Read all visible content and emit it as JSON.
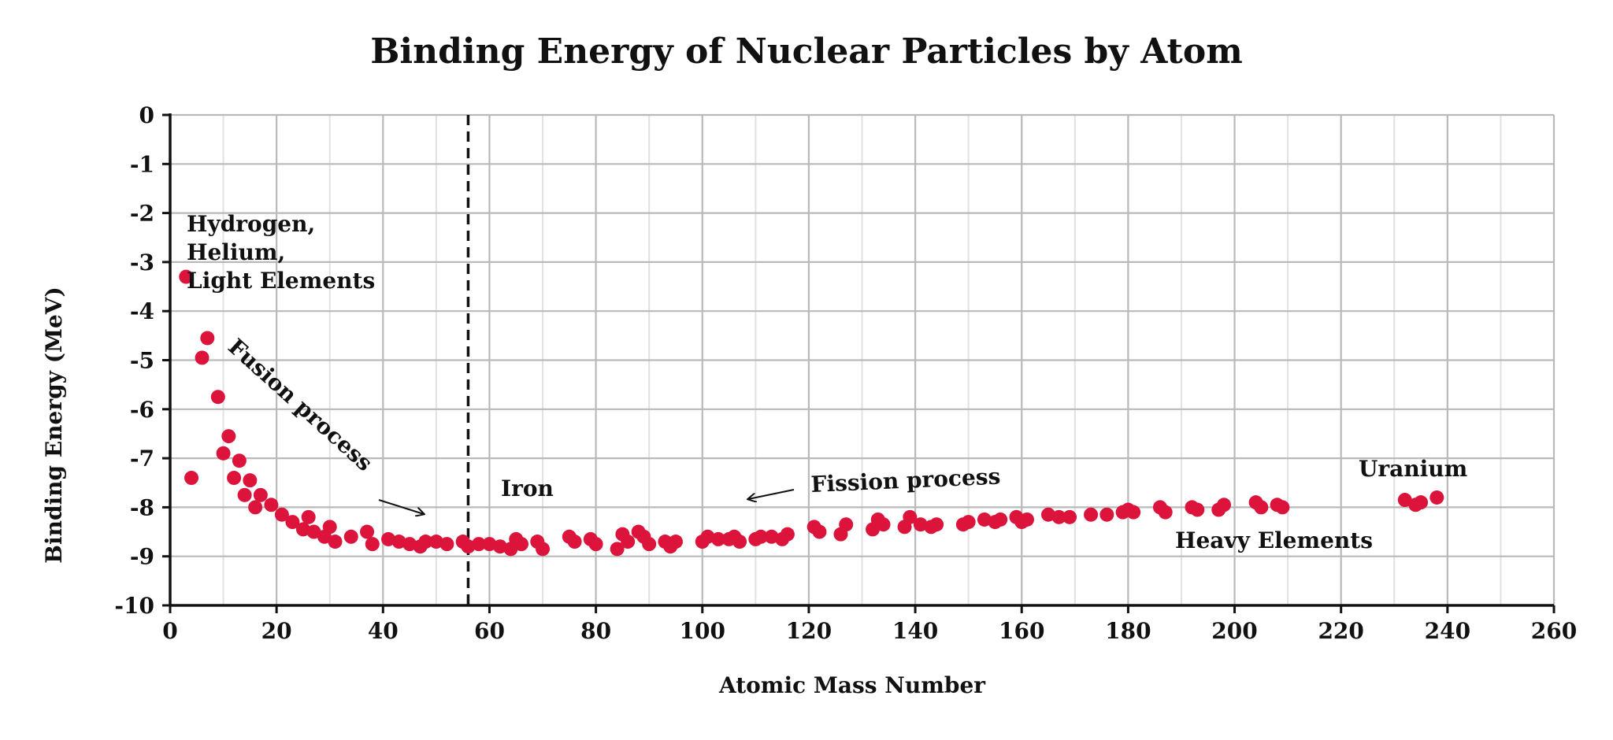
{
  "chart_data": {
    "type": "scatter",
    "title": "Binding Energy of Nuclear Particles by Atom",
    "xlabel": "Atomic Mass Number",
    "ylabel": "Binding Energy (MeV)",
    "xlim": [
      0,
      260
    ],
    "ylim": [
      -10,
      0
    ],
    "x_ticks": [
      0,
      20,
      40,
      60,
      80,
      100,
      120,
      140,
      160,
      180,
      200,
      220,
      240,
      260
    ],
    "y_ticks": [
      0,
      -1,
      -2,
      -3,
      -4,
      -5,
      -6,
      -7,
      -8,
      -9,
      -10
    ],
    "grid": true,
    "marker_color": "#dc143c",
    "series": [
      {
        "name": "Binding energy",
        "points": [
          [
            3,
            -3.3
          ],
          [
            4,
            -7.4
          ],
          [
            6,
            -4.95
          ],
          [
            7,
            -4.55
          ],
          [
            9,
            -5.75
          ],
          [
            10,
            -6.9
          ],
          [
            11,
            -6.55
          ],
          [
            12,
            -7.4
          ],
          [
            13,
            -7.05
          ],
          [
            14,
            -7.75
          ],
          [
            15,
            -7.45
          ],
          [
            16,
            -8.0
          ],
          [
            17,
            -7.75
          ],
          [
            19,
            -7.95
          ],
          [
            21,
            -8.15
          ],
          [
            23,
            -8.3
          ],
          [
            25,
            -8.45
          ],
          [
            26,
            -8.2
          ],
          [
            27,
            -8.5
          ],
          [
            29,
            -8.6
          ],
          [
            30,
            -8.4
          ],
          [
            31,
            -8.7
          ],
          [
            34,
            -8.6
          ],
          [
            37,
            -8.5
          ],
          [
            38,
            -8.75
          ],
          [
            41,
            -8.65
          ],
          [
            43,
            -8.7
          ],
          [
            45,
            -8.75
          ],
          [
            47,
            -8.8
          ],
          [
            48,
            -8.7
          ],
          [
            50,
            -8.7
          ],
          [
            52,
            -8.75
          ],
          [
            55,
            -8.7
          ],
          [
            56,
            -8.8
          ],
          [
            58,
            -8.75
          ],
          [
            60,
            -8.75
          ],
          [
            62,
            -8.8
          ],
          [
            64,
            -8.85
          ],
          [
            65,
            -8.65
          ],
          [
            66,
            -8.75
          ],
          [
            69,
            -8.7
          ],
          [
            70,
            -8.85
          ],
          [
            75,
            -8.6
          ],
          [
            76,
            -8.7
          ],
          [
            79,
            -8.65
          ],
          [
            80,
            -8.75
          ],
          [
            84,
            -8.85
          ],
          [
            85,
            -8.55
          ],
          [
            86,
            -8.7
          ],
          [
            88,
            -8.5
          ],
          [
            89,
            -8.6
          ],
          [
            90,
            -8.75
          ],
          [
            93,
            -8.7
          ],
          [
            94,
            -8.8
          ],
          [
            95,
            -8.7
          ],
          [
            100,
            -8.7
          ],
          [
            101,
            -8.6
          ],
          [
            103,
            -8.65
          ],
          [
            105,
            -8.65
          ],
          [
            106,
            -8.6
          ],
          [
            107,
            -8.7
          ],
          [
            110,
            -8.65
          ],
          [
            111,
            -8.6
          ],
          [
            113,
            -8.6
          ],
          [
            115,
            -8.65
          ],
          [
            116,
            -8.55
          ],
          [
            121,
            -8.4
          ],
          [
            122,
            -8.5
          ],
          [
            126,
            -8.55
          ],
          [
            127,
            -8.35
          ],
          [
            132,
            -8.45
          ],
          [
            133,
            -8.25
          ],
          [
            134,
            -8.35
          ],
          [
            138,
            -8.4
          ],
          [
            139,
            -8.2
          ],
          [
            141,
            -8.35
          ],
          [
            143,
            -8.4
          ],
          [
            144,
            -8.35
          ],
          [
            149,
            -8.35
          ],
          [
            150,
            -8.3
          ],
          [
            153,
            -8.25
          ],
          [
            155,
            -8.3
          ],
          [
            156,
            -8.25
          ],
          [
            159,
            -8.2
          ],
          [
            160,
            -8.3
          ],
          [
            161,
            -8.25
          ],
          [
            165,
            -8.15
          ],
          [
            167,
            -8.2
          ],
          [
            169,
            -8.2
          ],
          [
            173,
            -8.15
          ],
          [
            176,
            -8.15
          ],
          [
            179,
            -8.1
          ],
          [
            180,
            -8.05
          ],
          [
            181,
            -8.1
          ],
          [
            186,
            -8.0
          ],
          [
            187,
            -8.1
          ],
          [
            192,
            -8.0
          ],
          [
            193,
            -8.05
          ],
          [
            197,
            -8.05
          ],
          [
            198,
            -7.95
          ],
          [
            204,
            -7.9
          ],
          [
            205,
            -8.0
          ],
          [
            208,
            -7.95
          ],
          [
            209,
            -8.0
          ],
          [
            232,
            -7.85
          ],
          [
            234,
            -7.95
          ],
          [
            235,
            -7.9
          ],
          [
            238,
            -7.8
          ]
        ]
      }
    ],
    "reference_line": {
      "x": 56,
      "style": "dashed"
    },
    "annotations": {
      "light_elements": [
        "Hydrogen,",
        "Helium,",
        "Light Elements"
      ],
      "fusion": "Fusion process",
      "iron": "Iron",
      "fission": "Fission process",
      "uranium": "Uranium",
      "heavy_elements": "Heavy Elements"
    }
  }
}
